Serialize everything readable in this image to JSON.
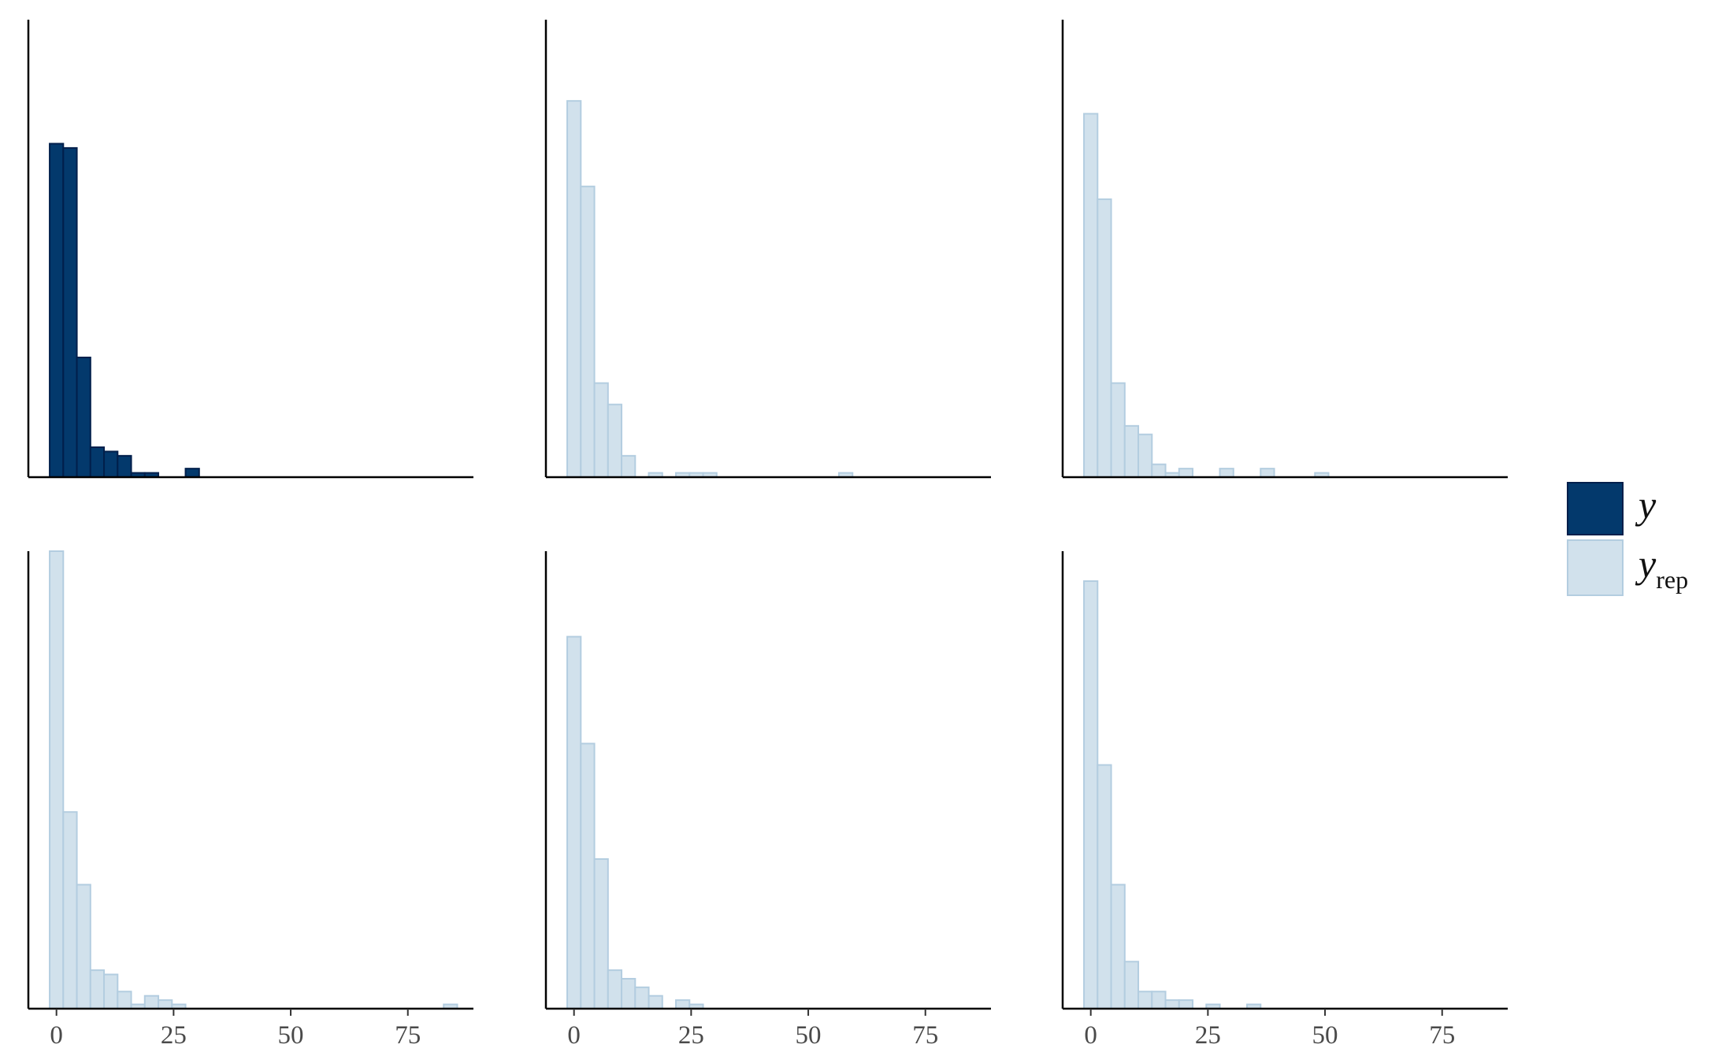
{
  "chart_data": {
    "type": "bar",
    "description_kind": "histogram grid (posterior predictive check)",
    "layout": "2 rows x 3 columns, shared x axis, no y axis labels",
    "bin_width": 2.9,
    "x_axis": {
      "ticks": [
        0,
        25,
        50,
        75
      ],
      "xlim": [
        -6,
        89
      ]
    },
    "grid": false,
    "legend": {
      "placement": "right",
      "entries": [
        {
          "key": "y",
          "label": "y",
          "subscript": "",
          "fill": "#03396c",
          "stroke": "#011f4b"
        },
        {
          "key": "yrep",
          "label": "y",
          "subscript": "rep",
          "fill": "#d1e1ec",
          "stroke": "#b3cde0"
        }
      ]
    },
    "panels": [
      {
        "series": "y",
        "ymax": 107,
        "bins": [
          {
            "x": 0.0,
            "count": 78
          },
          {
            "x": 2.9,
            "count": 77
          },
          {
            "x": 5.8,
            "count": 28
          },
          {
            "x": 8.7,
            "count": 7
          },
          {
            "x": 11.6,
            "count": 6
          },
          {
            "x": 14.5,
            "count": 5
          },
          {
            "x": 17.4,
            "count": 1
          },
          {
            "x": 20.3,
            "count": 1
          },
          {
            "x": 29.0,
            "count": 2
          }
        ]
      },
      {
        "series": "yrep",
        "ymax": 107,
        "bins": [
          {
            "x": 0.0,
            "count": 88
          },
          {
            "x": 2.9,
            "count": 68
          },
          {
            "x": 5.8,
            "count": 22
          },
          {
            "x": 8.7,
            "count": 17
          },
          {
            "x": 11.6,
            "count": 5
          },
          {
            "x": 17.4,
            "count": 1
          },
          {
            "x": 23.2,
            "count": 1
          },
          {
            "x": 26.1,
            "count": 1
          },
          {
            "x": 29.0,
            "count": 1
          },
          {
            "x": 58.0,
            "count": 1
          }
        ]
      },
      {
        "series": "yrep",
        "ymax": 107,
        "bins": [
          {
            "x": 0.0,
            "count": 85
          },
          {
            "x": 2.9,
            "count": 65
          },
          {
            "x": 5.8,
            "count": 22
          },
          {
            "x": 8.7,
            "count": 12
          },
          {
            "x": 11.6,
            "count": 10
          },
          {
            "x": 14.5,
            "count": 3
          },
          {
            "x": 17.4,
            "count": 1
          },
          {
            "x": 20.3,
            "count": 2
          },
          {
            "x": 29.0,
            "count": 2
          },
          {
            "x": 37.7,
            "count": 2
          },
          {
            "x": 49.3,
            "count": 1
          }
        ]
      },
      {
        "series": "yrep",
        "ymax": 107,
        "bins": [
          {
            "x": 0.0,
            "count": 107
          },
          {
            "x": 2.9,
            "count": 46
          },
          {
            "x": 5.8,
            "count": 29
          },
          {
            "x": 8.7,
            "count": 9
          },
          {
            "x": 11.6,
            "count": 8
          },
          {
            "x": 14.5,
            "count": 4
          },
          {
            "x": 17.4,
            "count": 1
          },
          {
            "x": 20.3,
            "count": 3
          },
          {
            "x": 23.2,
            "count": 2
          },
          {
            "x": 26.1,
            "count": 1
          },
          {
            "x": 84.1,
            "count": 1
          }
        ]
      },
      {
        "series": "yrep",
        "ymax": 107,
        "bins": [
          {
            "x": 0.0,
            "count": 87
          },
          {
            "x": 2.9,
            "count": 62
          },
          {
            "x": 5.8,
            "count": 35
          },
          {
            "x": 8.7,
            "count": 9
          },
          {
            "x": 11.6,
            "count": 7
          },
          {
            "x": 14.5,
            "count": 5
          },
          {
            "x": 17.4,
            "count": 3
          },
          {
            "x": 23.2,
            "count": 2
          },
          {
            "x": 26.1,
            "count": 1
          }
        ]
      },
      {
        "series": "yrep",
        "ymax": 107,
        "bins": [
          {
            "x": 0.0,
            "count": 100
          },
          {
            "x": 2.9,
            "count": 57
          },
          {
            "x": 5.8,
            "count": 29
          },
          {
            "x": 8.7,
            "count": 11
          },
          {
            "x": 11.6,
            "count": 4
          },
          {
            "x": 14.5,
            "count": 4
          },
          {
            "x": 17.4,
            "count": 2
          },
          {
            "x": 20.3,
            "count": 2
          },
          {
            "x": 26.1,
            "count": 1
          },
          {
            "x": 34.8,
            "count": 1
          }
        ]
      }
    ]
  }
}
